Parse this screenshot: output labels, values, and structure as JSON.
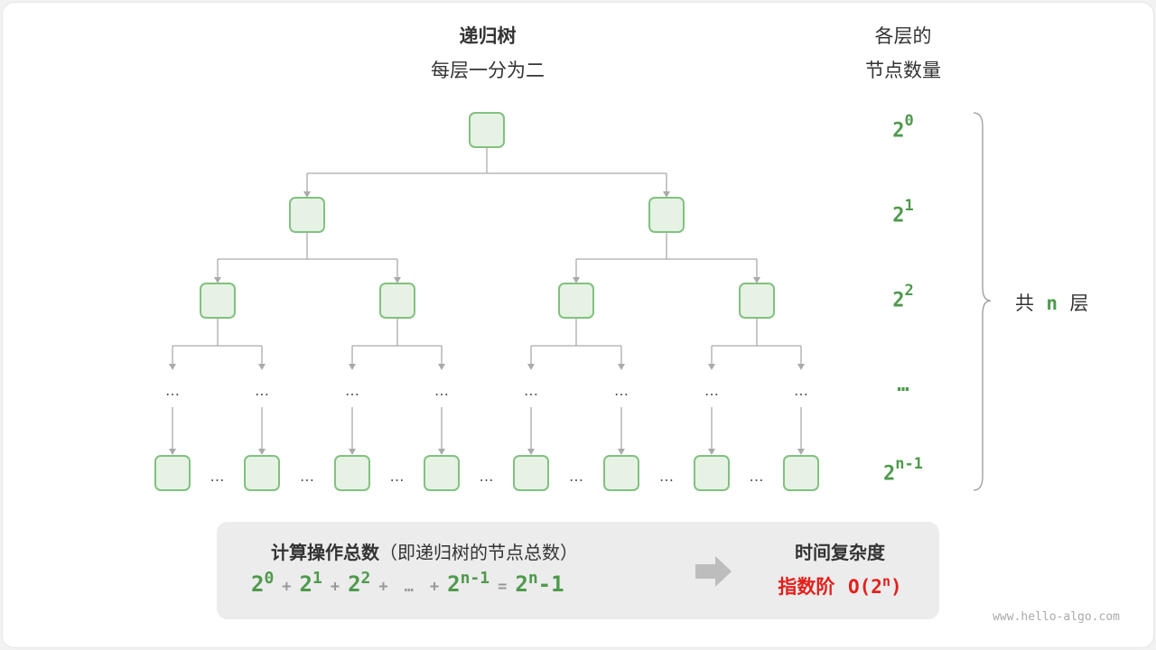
{
  "header": {
    "title": "递归树",
    "subtitle": "每层一分为二"
  },
  "right_header": {
    "line1": "各层的",
    "line2": "节点数量"
  },
  "levels": [
    {
      "base": "2",
      "exp": "0"
    },
    {
      "base": "2",
      "exp": "1"
    },
    {
      "base": "2",
      "exp": "2"
    },
    {
      "base": "…",
      "exp": ""
    },
    {
      "base": "2",
      "exp": "n-1"
    }
  ],
  "brace_label": {
    "pre": "共",
    "n": "n",
    "post": "层"
  },
  "ellipsis": "…",
  "summary": {
    "title": "计算操作总数",
    "title_note": "（即递归树的节点总数）",
    "formula": [
      {
        "base": "2",
        "exp": "0"
      },
      {
        "op": "+"
      },
      {
        "base": "2",
        "exp": "1"
      },
      {
        "op": "+"
      },
      {
        "base": "2",
        "exp": "2"
      },
      {
        "op": "+"
      },
      {
        "op": "…"
      },
      {
        "op": "+"
      },
      {
        "base": "2",
        "exp": "n-1"
      },
      {
        "op": "="
      },
      {
        "base": "2",
        "exp": "n",
        "tail": "-1"
      }
    ],
    "result_title": "时间复杂度",
    "result_label": "指数阶",
    "result_o": "O(2",
    "result_exp": "n",
    "result_close": ")"
  },
  "watermark": "www.hello-algo.com",
  "colors": {
    "node_fill": "#e5f2e4",
    "node_border": "#82c17f",
    "edge": "#aaaaaa",
    "accent_green": "#4e9a4c",
    "accent_red": "#e3201b"
  }
}
